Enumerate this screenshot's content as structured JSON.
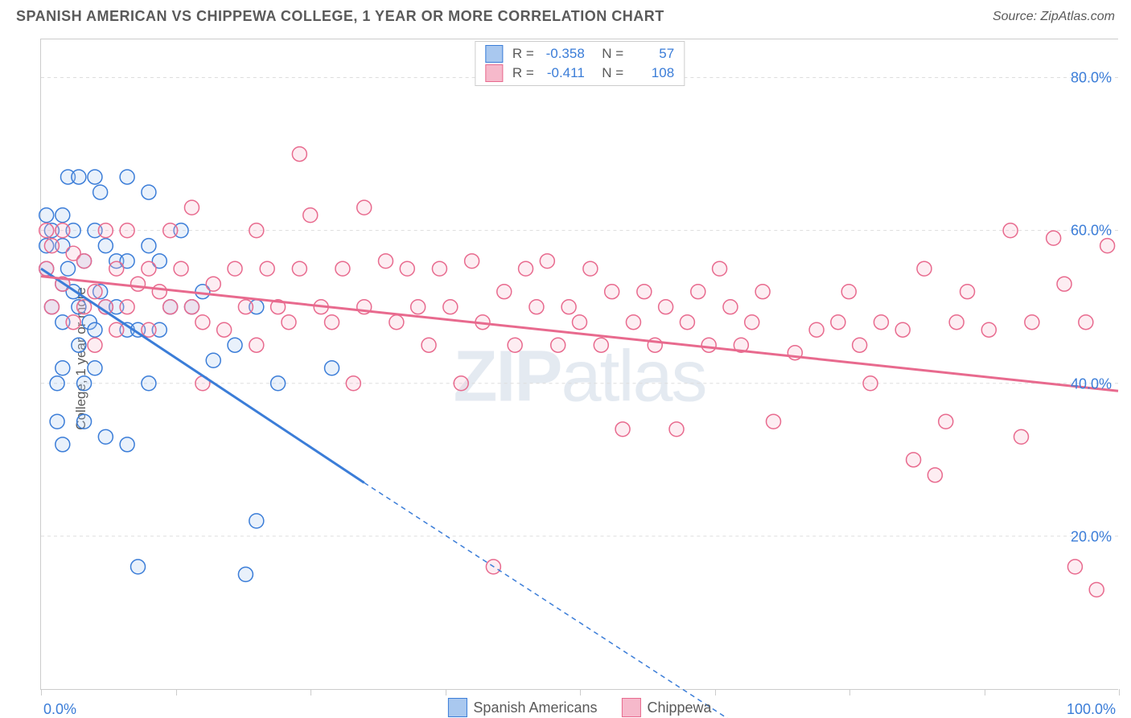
{
  "title": "SPANISH AMERICAN VS CHIPPEWA COLLEGE, 1 YEAR OR MORE CORRELATION CHART",
  "source": "Source: ZipAtlas.com",
  "watermark_a": "ZIP",
  "watermark_b": "atlas",
  "y_axis_label": "College, 1 year or more",
  "chart": {
    "type": "scatter",
    "xlim": [
      0,
      100
    ],
    "ylim": [
      0,
      85
    ],
    "y_ticks": [
      {
        "v": 20,
        "label": "20.0%"
      },
      {
        "v": 40,
        "label": "40.0%"
      },
      {
        "v": 60,
        "label": "60.0%"
      },
      {
        "v": 80,
        "label": "80.0%"
      }
    ],
    "x_ticks": [
      0,
      12.5,
      25,
      37.5,
      50,
      62.5,
      75,
      87.5,
      100
    ],
    "x_tick_labels": {
      "left": "0.0%",
      "right": "100.0%"
    },
    "background_color": "#ffffff",
    "grid_color": "#dddddd",
    "marker_radius": 9,
    "marker_stroke_width": 1.5,
    "marker_fill_opacity": 0.25,
    "series": [
      {
        "name": "Spanish Americans",
        "color_stroke": "#3b7dd8",
        "color_fill": "#a9c8ef",
        "R": "-0.358",
        "N": "57",
        "trend": {
          "x1": 0,
          "y1": 55,
          "x2": 30,
          "y2": 27,
          "dash_x2": 65,
          "dash_y2": -5
        },
        "points": [
          [
            0.5,
            62
          ],
          [
            0.5,
            58
          ],
          [
            0.5,
            55
          ],
          [
            1,
            60
          ],
          [
            1,
            50
          ],
          [
            1.5,
            40
          ],
          [
            1.5,
            35
          ],
          [
            2,
            62
          ],
          [
            2,
            58
          ],
          [
            2,
            53
          ],
          [
            2,
            48
          ],
          [
            2,
            42
          ],
          [
            2,
            32
          ],
          [
            2.5,
            67
          ],
          [
            2.5,
            55
          ],
          [
            3,
            60
          ],
          [
            3,
            52
          ],
          [
            3.5,
            67
          ],
          [
            3.5,
            50
          ],
          [
            3.5,
            45
          ],
          [
            4,
            56
          ],
          [
            4,
            40
          ],
          [
            4,
            35
          ],
          [
            4.5,
            48
          ],
          [
            5,
            67
          ],
          [
            5,
            60
          ],
          [
            5,
            47
          ],
          [
            5,
            42
          ],
          [
            5.5,
            65
          ],
          [
            5.5,
            52
          ],
          [
            6,
            58
          ],
          [
            6,
            50
          ],
          [
            6,
            33
          ],
          [
            7,
            56
          ],
          [
            7,
            50
          ],
          [
            8,
            67
          ],
          [
            8,
            56
          ],
          [
            8,
            47
          ],
          [
            8,
            32
          ],
          [
            9,
            47
          ],
          [
            10,
            65
          ],
          [
            10,
            58
          ],
          [
            10,
            40
          ],
          [
            11,
            56
          ],
          [
            11,
            47
          ],
          [
            12,
            50
          ],
          [
            13,
            60
          ],
          [
            14,
            50
          ],
          [
            15,
            52
          ],
          [
            16,
            43
          ],
          [
            18,
            45
          ],
          [
            20,
            50
          ],
          [
            22,
            40
          ],
          [
            27,
            42
          ],
          [
            9,
            16
          ],
          [
            19,
            15
          ],
          [
            20,
            22
          ]
        ]
      },
      {
        "name": "Chippewa",
        "color_stroke": "#e86a8e",
        "color_fill": "#f6b9cb",
        "R": "-0.411",
        "N": "108",
        "trend": {
          "x1": 0,
          "y1": 54,
          "x2": 100,
          "y2": 39
        },
        "points": [
          [
            0.5,
            60
          ],
          [
            0.5,
            55
          ],
          [
            1,
            58
          ],
          [
            1,
            50
          ],
          [
            2,
            60
          ],
          [
            2,
            53
          ],
          [
            3,
            57
          ],
          [
            3,
            48
          ],
          [
            4,
            56
          ],
          [
            4,
            50
          ],
          [
            5,
            52
          ],
          [
            5,
            45
          ],
          [
            6,
            60
          ],
          [
            6,
            50
          ],
          [
            7,
            55
          ],
          [
            7,
            47
          ],
          [
            8,
            60
          ],
          [
            8,
            50
          ],
          [
            9,
            53
          ],
          [
            10,
            55
          ],
          [
            10,
            47
          ],
          [
            11,
            52
          ],
          [
            12,
            60
          ],
          [
            12,
            50
          ],
          [
            13,
            55
          ],
          [
            14,
            63
          ],
          [
            14,
            50
          ],
          [
            15,
            48
          ],
          [
            15,
            40
          ],
          [
            16,
            53
          ],
          [
            17,
            47
          ],
          [
            18,
            55
          ],
          [
            19,
            50
          ],
          [
            20,
            60
          ],
          [
            20,
            45
          ],
          [
            21,
            55
          ],
          [
            22,
            50
          ],
          [
            23,
            48
          ],
          [
            24,
            70
          ],
          [
            24,
            55
          ],
          [
            25,
            62
          ],
          [
            26,
            50
          ],
          [
            27,
            48
          ],
          [
            28,
            55
          ],
          [
            29,
            40
          ],
          [
            30,
            63
          ],
          [
            30,
            50
          ],
          [
            32,
            56
          ],
          [
            33,
            48
          ],
          [
            34,
            55
          ],
          [
            35,
            50
          ],
          [
            36,
            45
          ],
          [
            37,
            55
          ],
          [
            38,
            50
          ],
          [
            39,
            40
          ],
          [
            40,
            56
          ],
          [
            41,
            48
          ],
          [
            42,
            16
          ],
          [
            43,
            52
          ],
          [
            44,
            45
          ],
          [
            45,
            55
          ],
          [
            46,
            50
          ],
          [
            47,
            56
          ],
          [
            48,
            45
          ],
          [
            49,
            50
          ],
          [
            50,
            48
          ],
          [
            51,
            55
          ],
          [
            52,
            45
          ],
          [
            53,
            52
          ],
          [
            54,
            34
          ],
          [
            55,
            48
          ],
          [
            56,
            52
          ],
          [
            57,
            45
          ],
          [
            58,
            50
          ],
          [
            59,
            34
          ],
          [
            60,
            48
          ],
          [
            61,
            52
          ],
          [
            62,
            45
          ],
          [
            63,
            55
          ],
          [
            64,
            50
          ],
          [
            65,
            45
          ],
          [
            66,
            48
          ],
          [
            67,
            52
          ],
          [
            68,
            35
          ],
          [
            70,
            44
          ],
          [
            72,
            47
          ],
          [
            74,
            48
          ],
          [
            75,
            52
          ],
          [
            76,
            45
          ],
          [
            77,
            40
          ],
          [
            78,
            48
          ],
          [
            80,
            47
          ],
          [
            81,
            30
          ],
          [
            82,
            55
          ],
          [
            83,
            28
          ],
          [
            84,
            35
          ],
          [
            85,
            48
          ],
          [
            86,
            52
          ],
          [
            88,
            47
          ],
          [
            90,
            60
          ],
          [
            91,
            33
          ],
          [
            92,
            48
          ],
          [
            94,
            59
          ],
          [
            95,
            53
          ],
          [
            96,
            16
          ],
          [
            97,
            48
          ],
          [
            98,
            13
          ],
          [
            99,
            58
          ]
        ]
      }
    ]
  },
  "colors": {
    "title": "#5a5a5a",
    "axis_value": "#3b7dd8"
  }
}
